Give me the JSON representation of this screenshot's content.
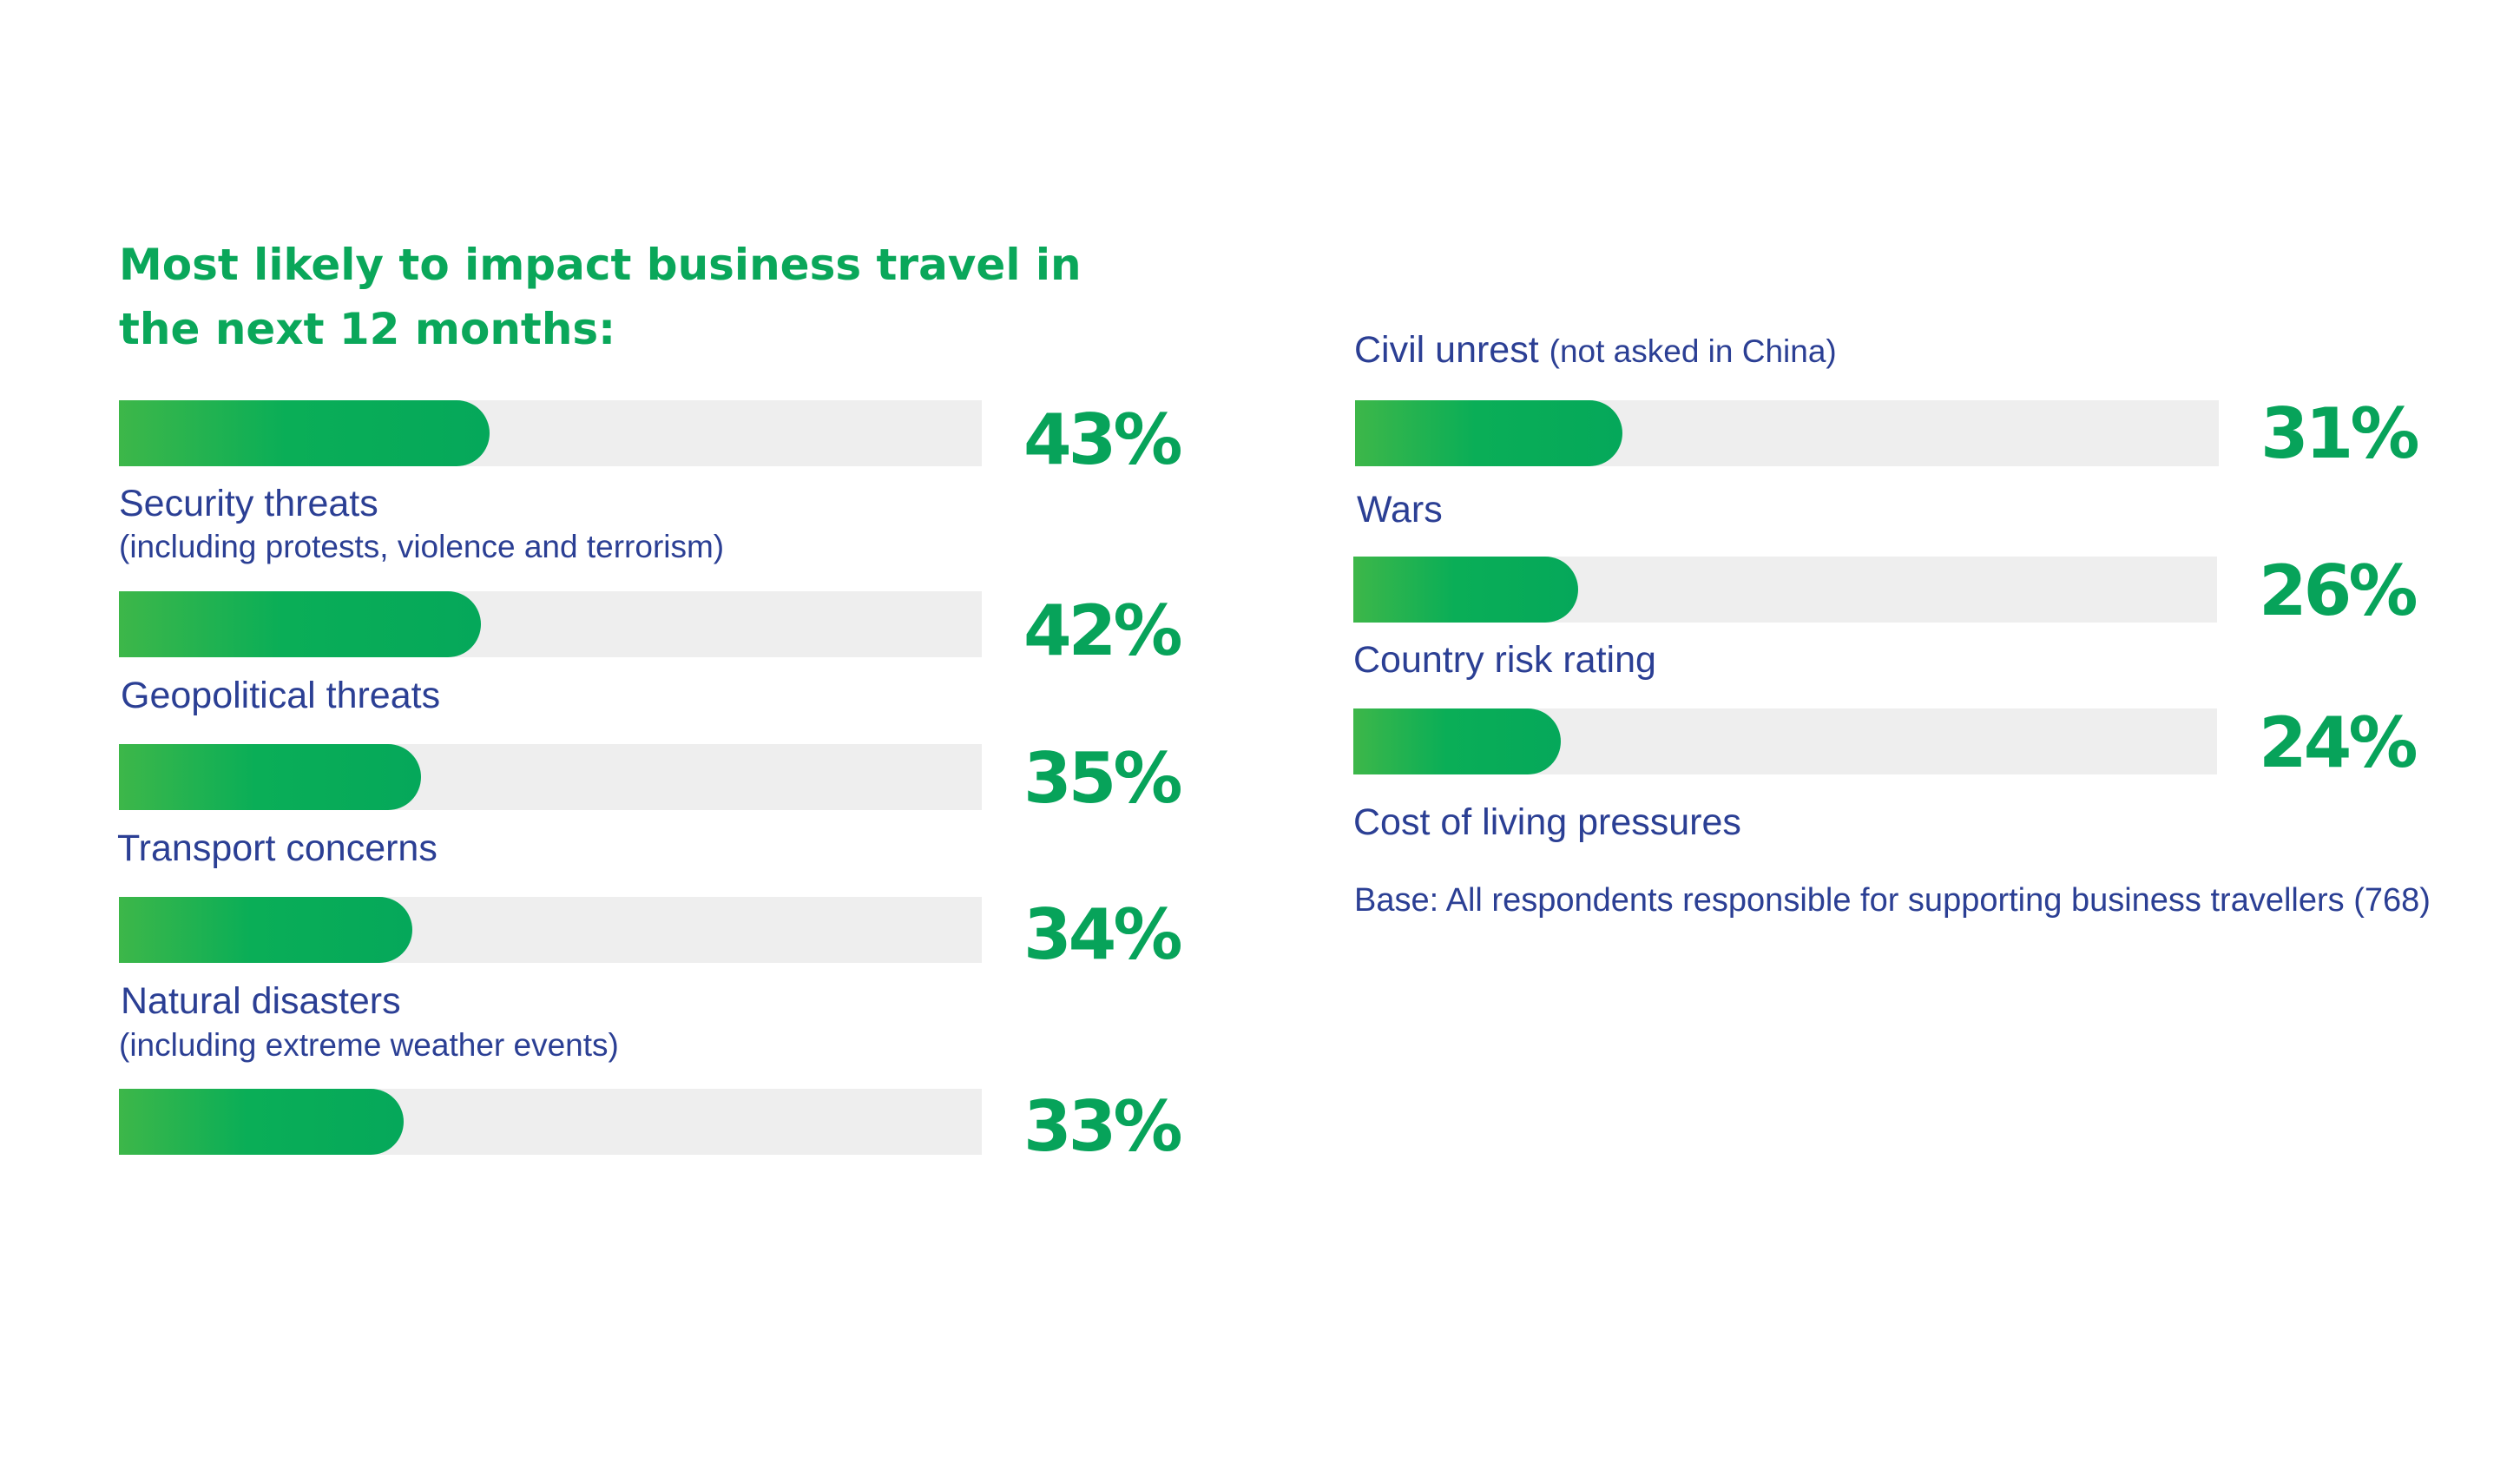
{
  "chart_data": {
    "type": "bar",
    "orientation": "horizontal",
    "title": "Most likely to impact business travel in the next 12 months:",
    "value_suffix": "%",
    "xlim": [
      0,
      100
    ],
    "bars": [
      {
        "label": "Security threats",
        "sublabel": "(including protests, violence and terrorism)",
        "value": 43
      },
      {
        "label": "Geopolitical threats",
        "sublabel": "",
        "value": 42
      },
      {
        "label": "Transport concerns",
        "sublabel": "",
        "value": 35
      },
      {
        "label": "Natural disasters",
        "sublabel": "(including extreme weather events)",
        "value": 34
      },
      {
        "label": "Civil unrest",
        "sublabel": "(not asked in China)",
        "value": 33
      },
      {
        "label": "Wars",
        "sublabel": "",
        "value": 31
      },
      {
        "label": "Country risk rating",
        "sublabel": "",
        "value": 26
      },
      {
        "label": "Cost of living pressures",
        "sublabel": "",
        "value": 24
      }
    ],
    "note": "Base: All respondents responsible for supporting business travellers (768)",
    "colors": {
      "bar": "#0aae57",
      "bar_gradient_start": "#3db749",
      "track": "#eeeeee",
      "label": "#2b3f94",
      "value": "#07a35a"
    }
  }
}
